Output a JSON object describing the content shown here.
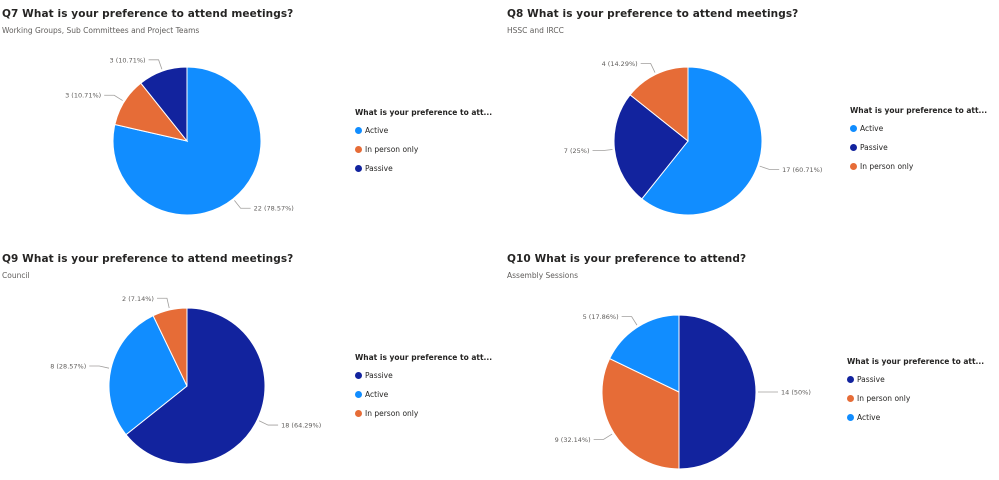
{
  "colors": {
    "Active": "#118dff",
    "Passive": "#12239e",
    "In person only": "#e66c37"
  },
  "chart_data": [
    {
      "type": "pie",
      "title": "Q7 What is your preference to attend meetings?",
      "subtitle": "Working Groups, Sub Committees and Project Teams",
      "legend_title": "What is your preference to att...",
      "legend_position": "right",
      "slices": [
        {
          "label": "Active",
          "value": 22,
          "text": "22 (78.57%)"
        },
        {
          "label": "In person only",
          "value": 3,
          "text": "3 (10.71%)"
        },
        {
          "label": "Passive",
          "value": 3,
          "text": "3 (10.71%)"
        }
      ]
    },
    {
      "type": "pie",
      "title": "Q8 What is your preference to attend meetings?",
      "subtitle": "HSSC and IRCC",
      "legend_title": "What is your preference to att...",
      "legend_position": "right",
      "slices": [
        {
          "label": "Active",
          "value": 17,
          "text": "17 (60.71%)"
        },
        {
          "label": "Passive",
          "value": 7,
          "text": "7 (25%)"
        },
        {
          "label": "In person only",
          "value": 4,
          "text": "4 (14.29%)"
        }
      ]
    },
    {
      "type": "pie",
      "title": "Q9 What is your preference to attend meetings?",
      "subtitle": "Council",
      "legend_title": "What is your preference to att...",
      "legend_position": "right",
      "slices": [
        {
          "label": "Passive",
          "value": 18,
          "text": "18 (64.29%)"
        },
        {
          "label": "Active",
          "value": 8,
          "text": "8 (28.57%)"
        },
        {
          "label": "In person only",
          "value": 2,
          "text": "2 (7.14%)"
        }
      ]
    },
    {
      "type": "pie",
      "title": "Q10 What is your preference to attend?",
      "subtitle": "Assembly Sessions",
      "legend_title": "What is your preference to att...",
      "legend_position": "right",
      "slices": [
        {
          "label": "Passive",
          "value": 14,
          "text": "14 (50%)"
        },
        {
          "label": "In person only",
          "value": 9,
          "text": "9 (32.14%)"
        },
        {
          "label": "Active",
          "value": 5,
          "text": "5 (17.86%)"
        }
      ]
    }
  ]
}
